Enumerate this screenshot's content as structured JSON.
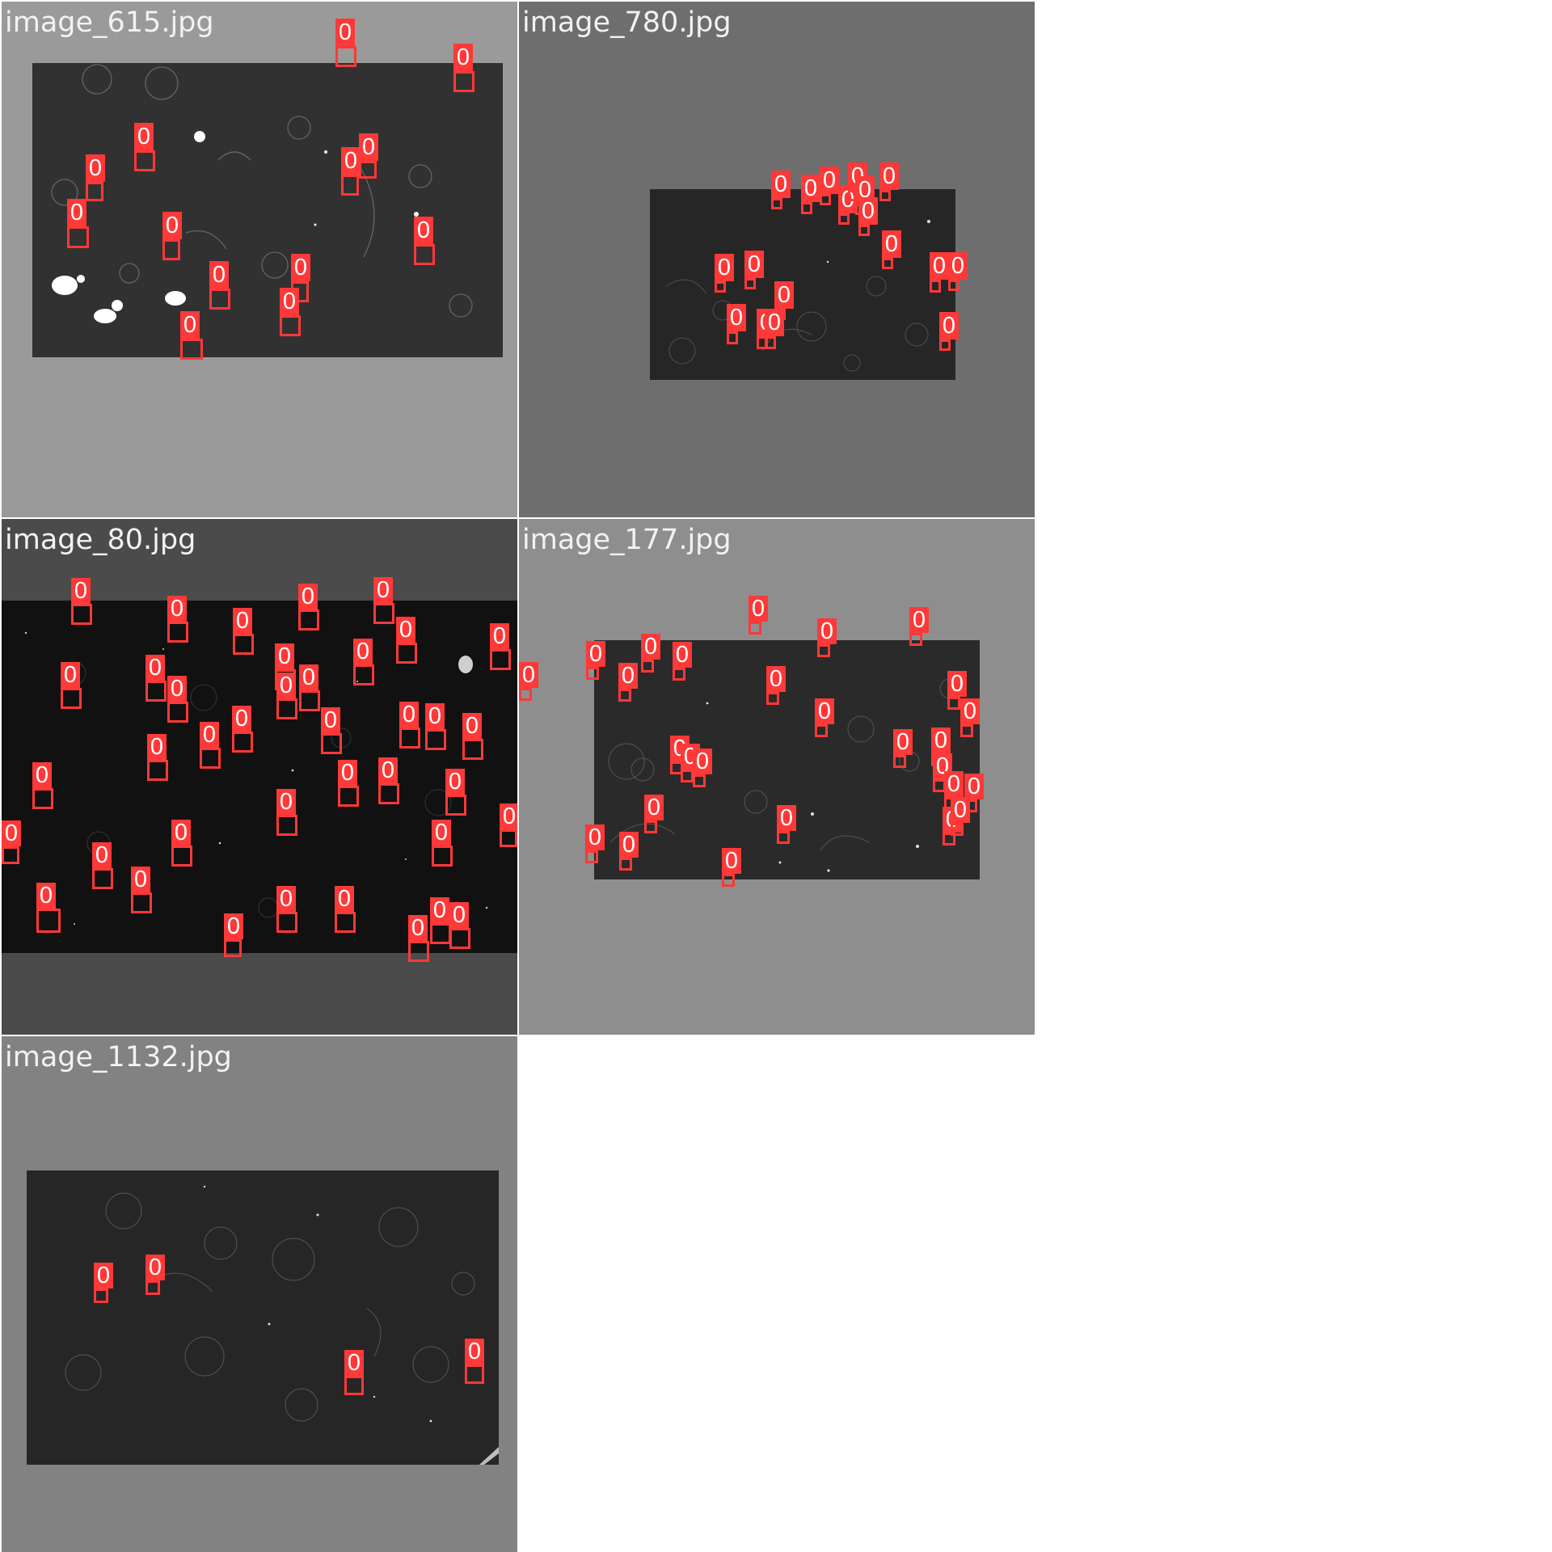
{
  "detection_label": "0",
  "colors": {
    "page_background": "#ffffff",
    "detection_box": "#ff3838",
    "detection_text": "#ffffff",
    "title_text": "#f2f2f2",
    "photo_base": "#262626"
  },
  "tiles": [
    {
      "filename": "image_615.jpg",
      "background": "#9a9a9a",
      "photo_tint": "#313131",
      "detection_count": 15
    },
    {
      "filename": "image_780.jpg",
      "background": "#6e6e6e",
      "photo_tint": "#262626",
      "detection_count": 19
    },
    {
      "filename": "image_80.jpg",
      "background": "#4b4b4b",
      "photo_tint": "#111111",
      "detection_count": 63
    },
    {
      "filename": "image_177.jpg",
      "background": "#8e8e8e",
      "photo_tint": "#2a2a2a",
      "detection_count": 32
    },
    {
      "filename": "image_1132.jpg",
      "background": "#828282",
      "photo_tint": "#262626",
      "detection_count": 4
    }
  ]
}
